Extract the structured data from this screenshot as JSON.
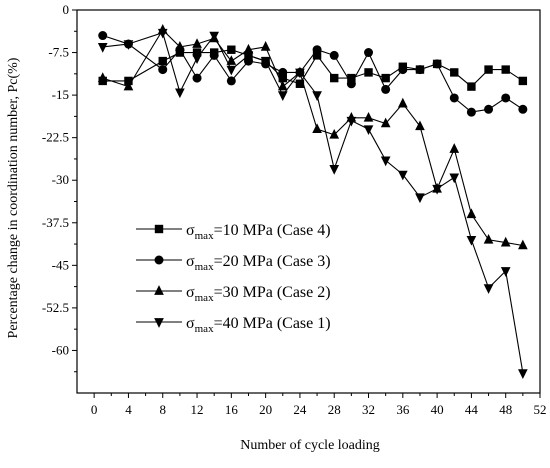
{
  "chart_data": {
    "type": "line",
    "title": "",
    "xlabel": "Number of cycle loading",
    "ylabel": "Percentage change in coordination number, Pc(%)",
    "xlim": [
      -2,
      52
    ],
    "ylim": [
      -67.5,
      0
    ],
    "xticks": [
      0,
      4,
      8,
      12,
      16,
      20,
      24,
      28,
      32,
      36,
      40,
      44,
      48,
      52
    ],
    "yticks": [
      0,
      -7.5,
      -15,
      -22.5,
      -30,
      -37.5,
      -45,
      -52.5,
      -60
    ],
    "ytick_labels": [
      "0",
      "-7.5",
      "-15",
      "-22.5",
      "-30",
      "-37.5",
      "-45",
      "-52.5",
      "-60"
    ],
    "grid": false,
    "legend_position": "bottom-left",
    "series": [
      {
        "name": "σmax=10 MPa (Case 4)",
        "legend_symbol": "σ",
        "legend_sub": "max",
        "legend_rest": "=10 MPa (Case 4)",
        "marker": "square",
        "x": [
          1,
          4,
          8,
          10,
          12,
          14,
          16,
          18,
          20,
          22,
          24,
          26,
          28,
          30,
          32,
          34,
          36,
          38,
          40,
          42,
          44,
          46,
          48,
          50
        ],
        "y": [
          -12.5,
          -12.5,
          -9,
          -7.5,
          -7.5,
          -7.5,
          -7,
          -8,
          -9,
          -12,
          -13,
          -8,
          -12,
          -12,
          -11,
          -12,
          -10,
          -10.5,
          -9.5,
          -11,
          -13.5,
          -10.5,
          -10.5,
          -12.5
        ]
      },
      {
        "name": "σmax=20 MPa (Case 3)",
        "legend_symbol": "σ",
        "legend_sub": "max",
        "legend_rest": "=20 MPa (Case 3)",
        "marker": "circle",
        "x": [
          1,
          4,
          8,
          10,
          12,
          14,
          16,
          18,
          20,
          22,
          24,
          26,
          28,
          30,
          32,
          34,
          36,
          38,
          40,
          42,
          44,
          46,
          48,
          50
        ],
        "y": [
          -4.5,
          -6,
          -10.5,
          -7,
          -12,
          -8,
          -12.5,
          -9,
          -9.5,
          -11,
          -11,
          -7,
          -8,
          -13,
          -7.5,
          -14,
          -10.5,
          -10.5,
          -9.5,
          -15.5,
          -18,
          -17.5,
          -15.5,
          -17.5
        ]
      },
      {
        "name": "σmax=30 MPa (Case 2)",
        "legend_symbol": "σ",
        "legend_sub": "max",
        "legend_rest": "=30 MPa (Case 2)",
        "marker": "triangle-up",
        "x": [
          1,
          4,
          8,
          10,
          12,
          14,
          16,
          18,
          20,
          22,
          24,
          26,
          28,
          30,
          32,
          34,
          36,
          38,
          40,
          42,
          44,
          46,
          48,
          50
        ],
        "y": [
          -12,
          -13.5,
          -3.5,
          -6.5,
          -6,
          -5,
          -9,
          -7,
          -6.5,
          -13.5,
          -11,
          -21,
          -22,
          -19,
          -19,
          -20,
          -16.5,
          -20.5,
          -31.5,
          -24.5,
          -36,
          -40.5,
          -41,
          -41.5
        ]
      },
      {
        "name": "σmax=40 MPa (Case 1)",
        "legend_symbol": "σ",
        "legend_sub": "max",
        "legend_rest": "=40 MPa (Case 1)",
        "marker": "triangle-down",
        "x": [
          1,
          4,
          8,
          10,
          12,
          14,
          16,
          18,
          20,
          22,
          24,
          26,
          28,
          30,
          32,
          34,
          36,
          38,
          40,
          42,
          44,
          46,
          48,
          50
        ],
        "y": [
          -6.5,
          -6,
          -4,
          -14.5,
          -8.5,
          -4.5,
          -10.5,
          -8,
          -9,
          -15,
          -11,
          -15,
          -28,
          -19.5,
          -21,
          -26.5,
          -29,
          -33,
          -31.5,
          -29.5,
          -40.5,
          -49,
          -46,
          -64
        ]
      }
    ]
  }
}
